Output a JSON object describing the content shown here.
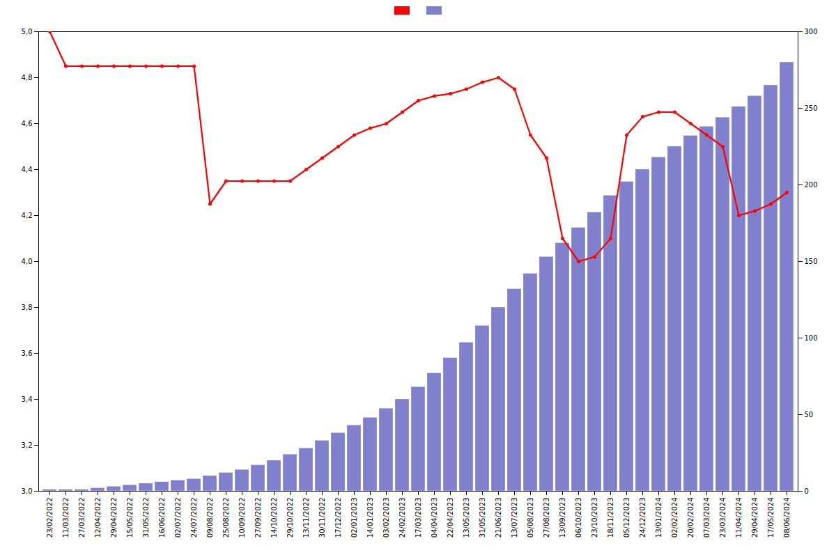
{
  "chart_data": {
    "type": "bar",
    "categories": [
      "23/02/2022",
      "11/03/2022",
      "27/03/2022",
      "12/04/2022",
      "29/04/2022",
      "15/05/2022",
      "31/05/2022",
      "16/06/2022",
      "02/07/2022",
      "24/07/2022",
      "09/08/2022",
      "25/08/2022",
      "10/09/2022",
      "27/09/2022",
      "14/10/2022",
      "29/10/2022",
      "13/11/2022",
      "30/11/2022",
      "17/12/2022",
      "02/01/2023",
      "14/01/2023",
      "03/02/2023",
      "24/02/2023",
      "17/03/2023",
      "04/04/2023",
      "22/04/2023",
      "13/05/2023",
      "31/05/2023",
      "21/06/2023",
      "13/07/2023",
      "05/08/2023",
      "27/08/2023",
      "13/09/2023",
      "06/10/2023",
      "23/10/2023",
      "18/11/2023",
      "05/12/2023",
      "24/12/2023",
      "13/01/2024",
      "02/02/2024",
      "20/02/2024",
      "07/03/2024",
      "23/03/2024",
      "11/04/2024",
      "29/04/2024",
      "17/05/2024",
      "08/06/2024"
    ],
    "series": [
      {
        "type": "line",
        "color": "#ff0000",
        "marker": "circle",
        "values": [
          5.0,
          4.85,
          4.85,
          4.85,
          4.85,
          4.85,
          4.85,
          4.85,
          4.85,
          4.85,
          4.25,
          4.35,
          4.35,
          4.35,
          4.35,
          4.35,
          4.4,
          4.45,
          4.5,
          4.55,
          4.58,
          4.6,
          4.65,
          4.7,
          4.72,
          4.73,
          4.75,
          4.78,
          4.8,
          4.75,
          4.55,
          4.45,
          4.1,
          4.0,
          4.02,
          4.1,
          4.55,
          4.63,
          4.65,
          4.65,
          4.6,
          4.55,
          4.5,
          4.2,
          4.22,
          4.25,
          4.3
        ]
      },
      {
        "type": "bar",
        "color": "#8080cc",
        "axis": "y2",
        "values": [
          1,
          1,
          1,
          2,
          3,
          4,
          5,
          6,
          7,
          8,
          10,
          12,
          14,
          17,
          20,
          24,
          28,
          33,
          38,
          43,
          48,
          54,
          60,
          68,
          77,
          87,
          97,
          108,
          120,
          132,
          142,
          153,
          162,
          172,
          182,
          193,
          202,
          210,
          218,
          225,
          232,
          238,
          244,
          251,
          258,
          265,
          280
        ]
      }
    ],
    "ylim": [
      3.0,
      5.0
    ],
    "yticks": [
      {
        "value": 3.0,
        "label": "3,0"
      },
      {
        "value": 3.2,
        "label": "3,2"
      },
      {
        "value": 3.4,
        "label": "3,4"
      },
      {
        "value": 3.6,
        "label": "3,6"
      },
      {
        "value": 3.8,
        "label": "3,8"
      },
      {
        "value": 4.0,
        "label": "4,0"
      },
      {
        "value": 4.2,
        "label": "4,2"
      },
      {
        "value": 4.4,
        "label": "4,4"
      },
      {
        "value": 4.6,
        "label": "4,6"
      },
      {
        "value": 4.8,
        "label": "4,8"
      },
      {
        "value": 5.0,
        "label": "5,0"
      }
    ],
    "y2lim": [
      0,
      300
    ],
    "y2ticks": [
      0,
      50,
      100,
      150,
      200,
      250,
      300
    ],
    "grid": false,
    "legend": "top"
  }
}
